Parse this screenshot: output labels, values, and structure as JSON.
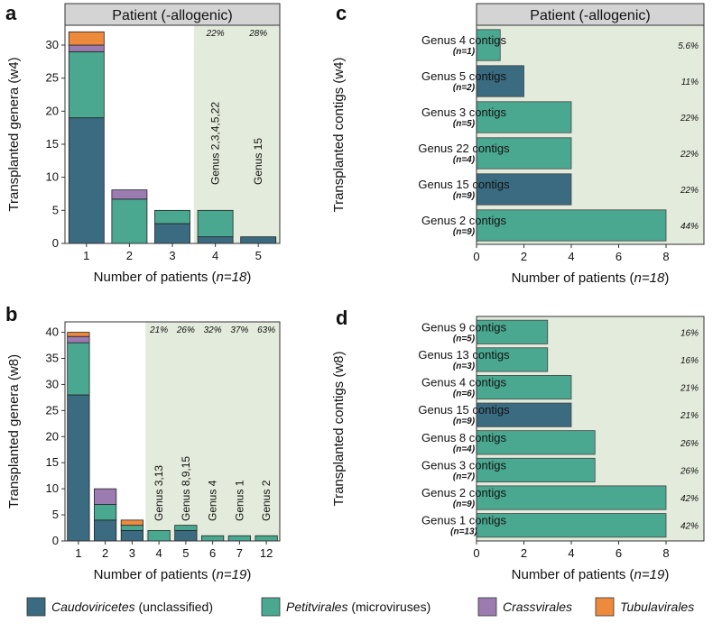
{
  "colors": {
    "Caudoviricetes": "#3a6b80",
    "Petitvirales": "#4aa890",
    "Crassvirales": "#9c7bb0",
    "Tubulavirales": "#ee8a3c",
    "shade": "#e3ebdc",
    "header_bg": "#d4d4d4"
  },
  "legend": [
    {
      "key": "Caudoviricetes",
      "name": "Caudoviricetes",
      "suffix": " (unclassified)"
    },
    {
      "key": "Petitvirales",
      "name": "Petitvirales",
      "suffix": " (microviruses)"
    },
    {
      "key": "Crassvirales",
      "name": "Crassvirales",
      "suffix": ""
    },
    {
      "key": "Tubulavirales",
      "name": "Tubulavirales",
      "suffix": ""
    }
  ],
  "chart_data": [
    {
      "panel": "a",
      "type": "bar",
      "stacked": true,
      "header": "Patient (-allogenic)",
      "xlabel_prefix": "Number of patients (",
      "xlabel_n": "n=18",
      "ylabel": "Transplanted genera (w4)",
      "ylim": [
        0,
        33
      ],
      "yticks": [
        0,
        5,
        10,
        15,
        20,
        25,
        30
      ],
      "categories": [
        "1",
        "2",
        "3",
        "4",
        "5"
      ],
      "series": [
        {
          "name": "Caudoviricetes",
          "values": [
            19,
            0,
            3,
            1,
            1
          ]
        },
        {
          "name": "Petitvirales",
          "values": [
            10,
            6.7,
            2,
            4,
            0
          ]
        },
        {
          "name": "Crassvirales",
          "values": [
            1,
            1.4,
            0,
            0,
            0
          ]
        },
        {
          "name": "Tubulavirales",
          "values": [
            2,
            0,
            0,
            0,
            0
          ]
        }
      ],
      "shade_from_index": 3,
      "top_labels": {
        "3": "22%",
        "4": "28%"
      },
      "annotations": {
        "3": "Genus 2,3,4,5,22",
        "4": "Genus 15"
      }
    },
    {
      "panel": "b",
      "type": "bar",
      "stacked": true,
      "header": "",
      "xlabel_prefix": "Number of patients (",
      "xlabel_n": "n=19",
      "ylabel": "Transplanted genera (w8)",
      "ylim": [
        0,
        42
      ],
      "yticks": [
        0,
        5,
        10,
        15,
        20,
        25,
        30,
        35,
        40
      ],
      "categories": [
        "1",
        "2",
        "3",
        "4",
        "5",
        "6",
        "7",
        "12"
      ],
      "series": [
        {
          "name": "Caudoviricetes",
          "values": [
            28,
            4,
            2,
            0,
            2,
            0,
            0,
            0
          ]
        },
        {
          "name": "Petitvirales",
          "values": [
            10,
            3,
            1,
            2,
            1,
            1,
            1,
            1
          ]
        },
        {
          "name": "Crassvirales",
          "values": [
            1.2,
            3,
            0,
            0,
            0,
            0,
            0,
            0
          ]
        },
        {
          "name": "Tubulavirales",
          "values": [
            0.8,
            0,
            1,
            0,
            0,
            0,
            0,
            0
          ]
        }
      ],
      "shade_from_index": 3,
      "top_labels": {
        "3": "21%",
        "4": "26%",
        "5": "32%",
        "6": "37%",
        "7": "63%"
      },
      "annotations": {
        "3": "Genus 3,13",
        "4": "Genus 8,9,15",
        "5": "Genus 4",
        "6": "Genus 1",
        "7": "Genus 2"
      }
    },
    {
      "panel": "c",
      "type": "bar",
      "orientation": "horizontal",
      "header": "Patient (-allogenic)",
      "xlabel_prefix": "Number of patients (",
      "xlabel_n": "n=18",
      "ylabel": "Transplanted contigs (w4)",
      "xlim": [
        0,
        9.6
      ],
      "xticks": [
        0,
        2,
        4,
        6,
        8
      ],
      "bars": [
        {
          "label": "Genus 4 contigs",
          "n": "(n=1)",
          "value": 1,
          "type": "Petitvirales",
          "pct": "5.6%"
        },
        {
          "label": "Genus 5 contigs",
          "n": "(n=2)",
          "value": 2,
          "type": "Caudoviricetes",
          "pct": "11%"
        },
        {
          "label": "Genus 3 contigs",
          "n": "(n=5)",
          "value": 4,
          "type": "Petitvirales",
          "pct": "22%"
        },
        {
          "label": "Genus 22 contigs",
          "n": "(n=4)",
          "value": 4,
          "type": "Petitvirales",
          "pct": "22%"
        },
        {
          "label": "Genus 15 contigs",
          "n": "(n=9)",
          "value": 4,
          "type": "Caudoviricetes",
          "pct": "22%"
        },
        {
          "label": "Genus 2 contigs",
          "n": "(n=9)",
          "value": 8,
          "type": "Petitvirales",
          "pct": "44%"
        }
      ]
    },
    {
      "panel": "d",
      "type": "bar",
      "orientation": "horizontal",
      "header": "",
      "xlabel_prefix": "Number of patients (",
      "xlabel_n": "n=19",
      "ylabel": "Transplanted contigs (w8)",
      "xlim": [
        0,
        9.6
      ],
      "xticks": [
        0,
        2,
        4,
        6,
        8
      ],
      "bars": [
        {
          "label": "Genus 9 contigs",
          "n": "(n=5)",
          "value": 3,
          "type": "Petitvirales",
          "pct": "16%"
        },
        {
          "label": "Genus 13 contigs",
          "n": "(n=3)",
          "value": 3,
          "type": "Petitvirales",
          "pct": "16%"
        },
        {
          "label": "Genus 4 contigs",
          "n": "(n=6)",
          "value": 4,
          "type": "Petitvirales",
          "pct": "21%"
        },
        {
          "label": "Genus 15 contigs",
          "n": "(n=9)",
          "value": 4,
          "type": "Caudoviricetes",
          "pct": "21%"
        },
        {
          "label": "Genus 8 contigs",
          "n": "(n=4)",
          "value": 5,
          "type": "Petitvirales",
          "pct": "26%"
        },
        {
          "label": "Genus 3 contigs",
          "n": "(n=7)",
          "value": 5,
          "type": "Petitvirales",
          "pct": "26%"
        },
        {
          "label": "Genus 2 contigs",
          "n": "(n=9)",
          "value": 8,
          "type": "Petitvirales",
          "pct": "42%"
        },
        {
          "label": "Genus 1 contigs",
          "n": "(n=13)",
          "value": 8,
          "type": "Petitvirales",
          "pct": "42%"
        }
      ]
    }
  ]
}
